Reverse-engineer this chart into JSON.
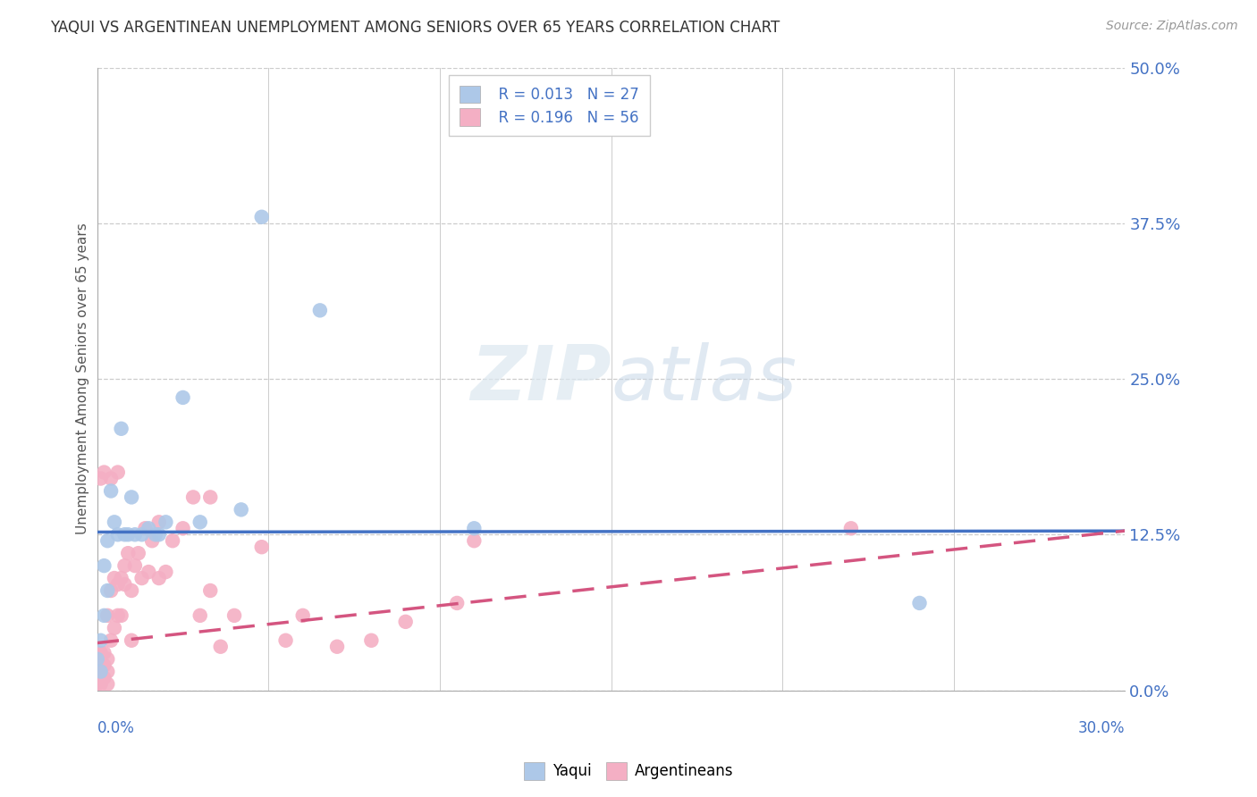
{
  "title": "YAQUI VS ARGENTINEAN UNEMPLOYMENT AMONG SENIORS OVER 65 YEARS CORRELATION CHART",
  "source": "Source: ZipAtlas.com",
  "ylabel": "Unemployment Among Seniors over 65 years",
  "xlim": [
    0.0,
    0.3
  ],
  "ylim": [
    0.0,
    0.5
  ],
  "ytick_labels": [
    "0.0%",
    "12.5%",
    "25.0%",
    "37.5%",
    "50.0%"
  ],
  "ytick_values": [
    0.0,
    0.125,
    0.25,
    0.375,
    0.5
  ],
  "yaqui_R": 0.013,
  "yaqui_N": 27,
  "arg_R": 0.196,
  "arg_N": 56,
  "yaqui_color": "#adc8e8",
  "yaqui_edge_color": "#adc8e8",
  "yaqui_line_color": "#4472c4",
  "arg_color": "#f4afc4",
  "arg_edge_color": "#f4afc4",
  "arg_line_color": "#d45580",
  "background_color": "#ffffff",
  "watermark_color": "#dce8f0",
  "yaqui_x": [
    0.0,
    0.001,
    0.001,
    0.002,
    0.002,
    0.003,
    0.003,
    0.004,
    0.005,
    0.006,
    0.007,
    0.008,
    0.009,
    0.01,
    0.011,
    0.013,
    0.015,
    0.017,
    0.018,
    0.02,
    0.025,
    0.03,
    0.042,
    0.048,
    0.065,
    0.11,
    0.24
  ],
  "yaqui_y": [
    0.025,
    0.015,
    0.04,
    0.06,
    0.1,
    0.08,
    0.12,
    0.16,
    0.135,
    0.125,
    0.21,
    0.125,
    0.125,
    0.155,
    0.125,
    0.125,
    0.13,
    0.125,
    0.125,
    0.135,
    0.235,
    0.135,
    0.145,
    0.38,
    0.305,
    0.13,
    0.07
  ],
  "arg_x": [
    0.0,
    0.0,
    0.001,
    0.001,
    0.001,
    0.001,
    0.001,
    0.002,
    0.002,
    0.002,
    0.002,
    0.003,
    0.003,
    0.003,
    0.003,
    0.004,
    0.004,
    0.004,
    0.005,
    0.005,
    0.006,
    0.006,
    0.006,
    0.007,
    0.007,
    0.008,
    0.008,
    0.009,
    0.01,
    0.01,
    0.011,
    0.012,
    0.013,
    0.014,
    0.015,
    0.016,
    0.018,
    0.018,
    0.02,
    0.022,
    0.025,
    0.028,
    0.03,
    0.033,
    0.033,
    0.036,
    0.04,
    0.048,
    0.055,
    0.06,
    0.07,
    0.08,
    0.09,
    0.105,
    0.11,
    0.22
  ],
  "arg_y": [
    0.005,
    0.01,
    0.005,
    0.01,
    0.02,
    0.03,
    0.17,
    0.01,
    0.02,
    0.03,
    0.175,
    0.005,
    0.015,
    0.025,
    0.06,
    0.04,
    0.08,
    0.17,
    0.05,
    0.09,
    0.06,
    0.085,
    0.175,
    0.06,
    0.09,
    0.085,
    0.1,
    0.11,
    0.04,
    0.08,
    0.1,
    0.11,
    0.09,
    0.13,
    0.095,
    0.12,
    0.09,
    0.135,
    0.095,
    0.12,
    0.13,
    0.155,
    0.06,
    0.08,
    0.155,
    0.035,
    0.06,
    0.115,
    0.04,
    0.06,
    0.035,
    0.04,
    0.055,
    0.07,
    0.12,
    0.13
  ]
}
